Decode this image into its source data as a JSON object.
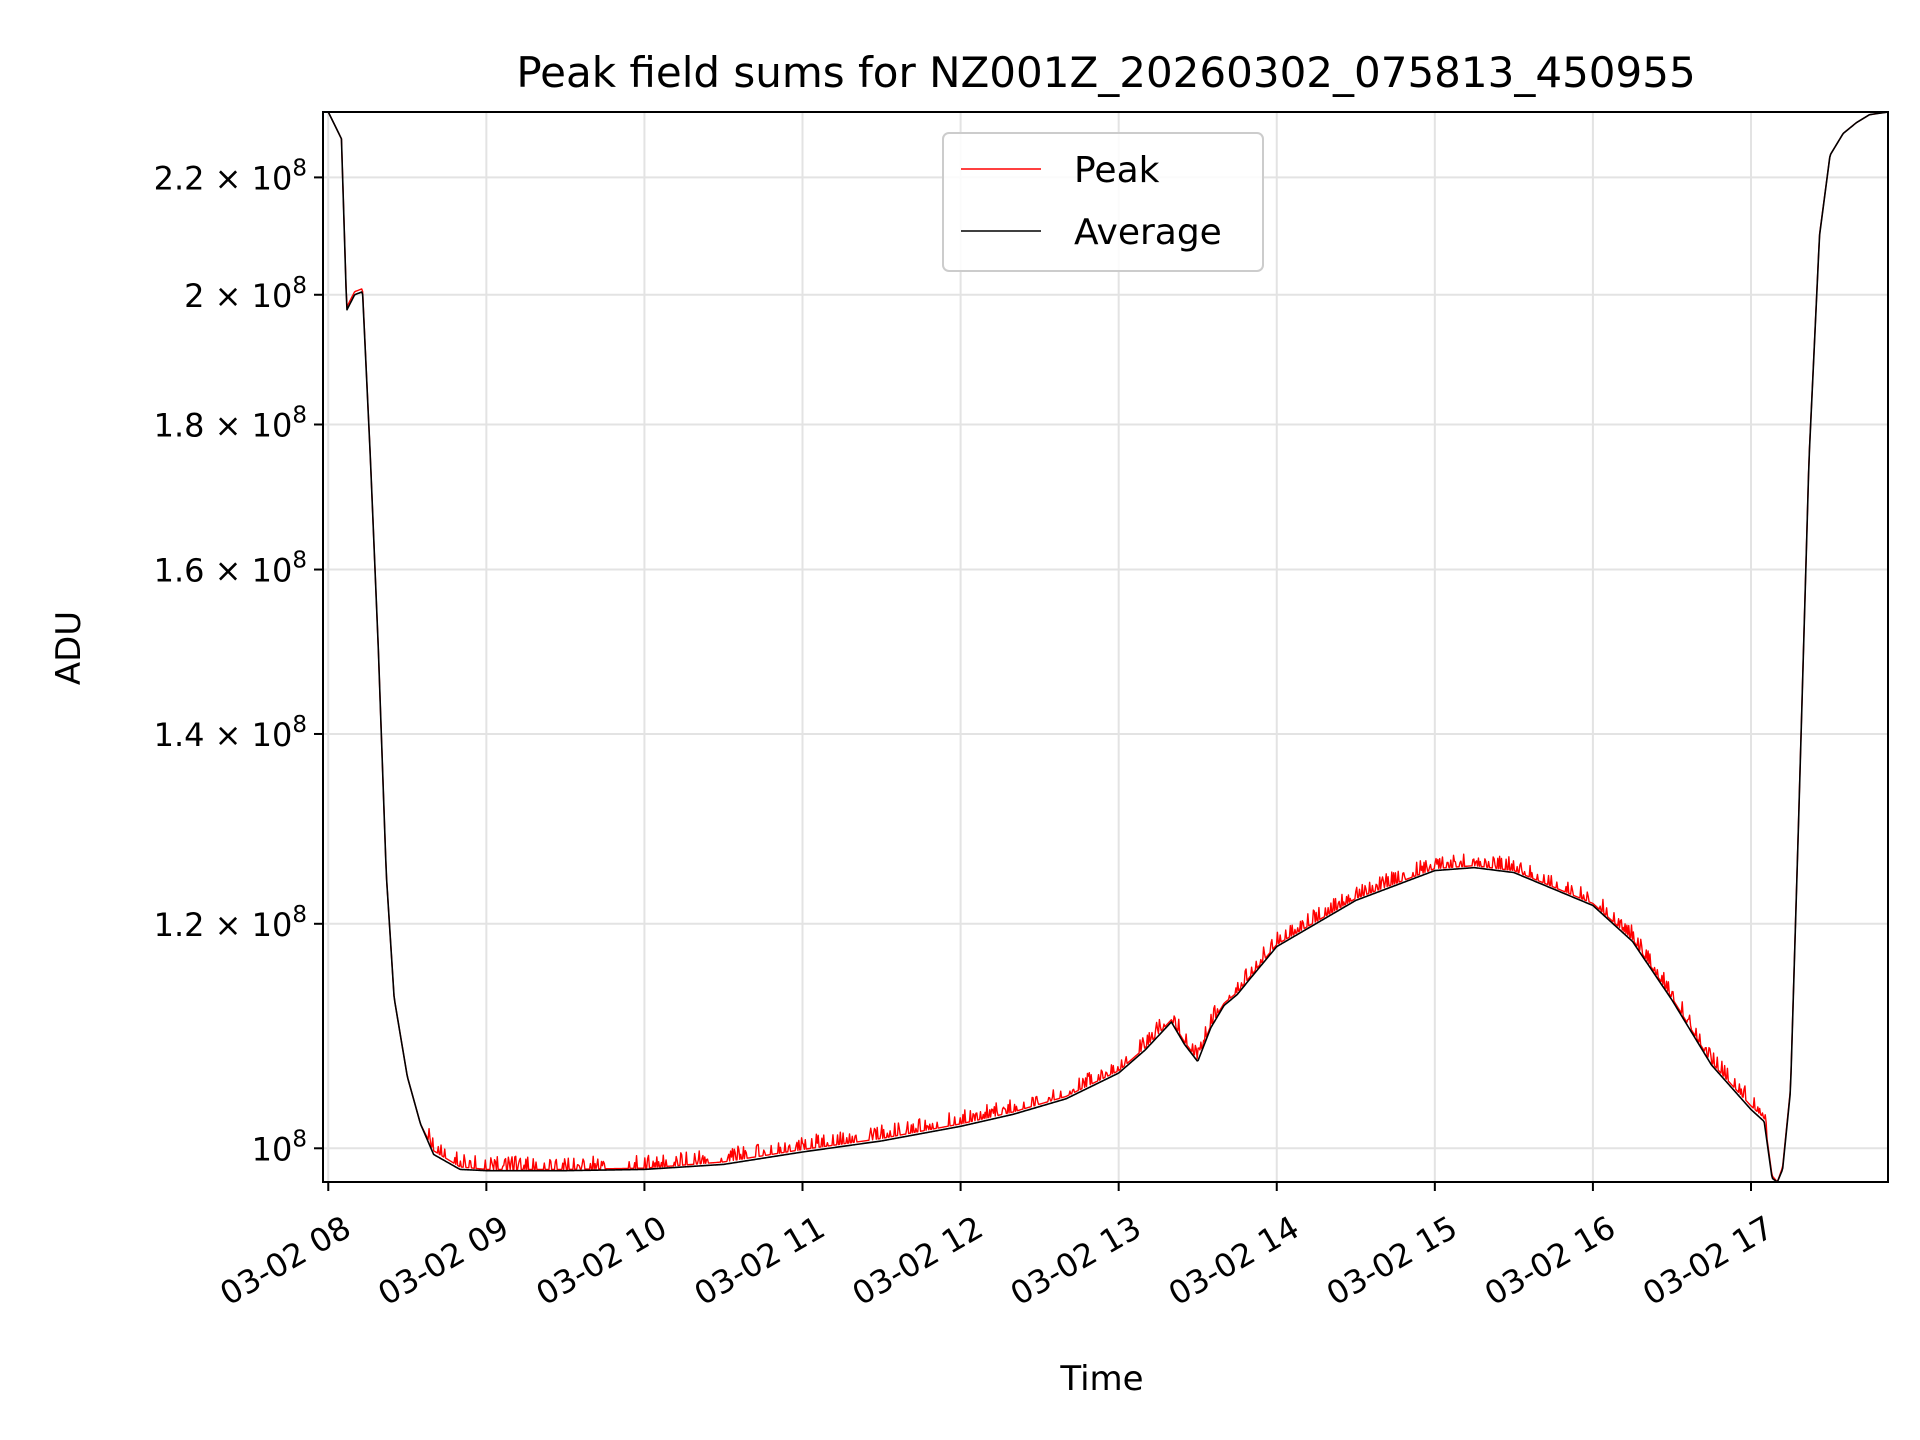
{
  "chart_data": {
    "type": "line",
    "title": "Peak field sums for NZ001Z_20260302_075813_450955",
    "xlabel": "Time",
    "ylabel": "ADU",
    "x_scale": "time",
    "y_scale": "log",
    "xlim": [
      "2026-03-02 07:58",
      "2026-03-02 17:52"
    ],
    "ylim": [
      97300000,
      232000000
    ],
    "x_ticks": [
      "03-02 08",
      "03-02 09",
      "03-02 10",
      "03-02 11",
      "03-02 12",
      "03-02 13",
      "03-02 14",
      "03-02 15",
      "03-02 16",
      "03-02 17"
    ],
    "y_ticks": [
      {
        "value": 100000000,
        "mantissa": "",
        "label": "10",
        "exponent": "8"
      },
      {
        "value": 120000000,
        "mantissa": "1.2",
        "label": "10",
        "exponent": "8"
      },
      {
        "value": 140000000,
        "mantissa": "1.4",
        "label": "10",
        "exponent": "8"
      },
      {
        "value": 160000000,
        "mantissa": "1.6",
        "label": "10",
        "exponent": "8"
      },
      {
        "value": 180000000,
        "mantissa": "1.8",
        "label": "10",
        "exponent": "8"
      },
      {
        "value": 200000000,
        "mantissa": "2",
        "label": "10",
        "exponent": "8"
      },
      {
        "value": 220000000,
        "mantissa": "2.2",
        "label": "10",
        "exponent": "8"
      }
    ],
    "times_symbol": "×",
    "grid": true,
    "legend_position": "upper center",
    "series": [
      {
        "name": "Peak",
        "color": "#ff0000",
        "noise": true,
        "x": [
          "07:58",
          "08:00",
          "08:01",
          "08:02",
          "08:03",
          "08:05",
          "08:07",
          "08:10",
          "08:13",
          "08:16",
          "08:19",
          "08:22",
          "08:25",
          "08:30",
          "08:35",
          "08:40",
          "08:50",
          "09:00",
          "09:30",
          "10:00",
          "10:30",
          "11:00",
          "11:30",
          "12:00",
          "12:20",
          "12:40",
          "13:00",
          "13:10",
          "13:20",
          "13:25",
          "13:30",
          "13:35",
          "13:40",
          "13:45",
          "13:50",
          "14:00",
          "14:30",
          "15:00",
          "15:15",
          "15:30",
          "16:00",
          "16:15",
          "16:30",
          "16:45",
          "17:00",
          "17:05",
          "17:08",
          "17:10",
          "17:12",
          "17:15",
          "17:18",
          "17:22",
          "17:26",
          "17:30",
          "17:35",
          "17:40",
          "17:45",
          "17:52"
        ],
        "y": [
          232000000,
          232000000,
          231000000,
          230000000,
          229000000,
          227000000,
          198000000,
          200500000,
          201000000,
          175000000,
          150000000,
          125000000,
          113000000,
          106000000,
          102000000,
          99800000,
          98500000,
          98300000,
          98300000,
          98400000,
          98900000,
          99900000,
          100800000,
          102000000,
          103000000,
          104300000,
          106500000,
          108500000,
          111000000,
          109000000,
          107500000,
          110500000,
          112500000,
          113500000,
          115000000,
          118000000,
          122500000,
          125500000,
          125800000,
          125300000,
          122000000,
          118500000,
          113000000,
          107200000,
          103500000,
          102500000,
          97800000,
          97300000,
          98500000,
          105000000,
          130000000,
          175000000,
          210000000,
          224000000,
          228000000,
          230000000,
          231500000,
          232000000
        ]
      },
      {
        "name": "Average",
        "color": "#000000",
        "noise": false,
        "x": [
          "07:58",
          "08:00",
          "08:01",
          "08:02",
          "08:03",
          "08:05",
          "08:07",
          "08:10",
          "08:13",
          "08:16",
          "08:19",
          "08:22",
          "08:25",
          "08:30",
          "08:35",
          "08:40",
          "08:50",
          "09:00",
          "09:30",
          "10:00",
          "10:30",
          "11:00",
          "11:30",
          "12:00",
          "12:20",
          "12:40",
          "13:00",
          "13:10",
          "13:20",
          "13:25",
          "13:30",
          "13:35",
          "13:40",
          "13:45",
          "13:50",
          "14:00",
          "14:30",
          "15:00",
          "15:15",
          "15:30",
          "16:00",
          "16:15",
          "16:30",
          "16:45",
          "17:00",
          "17:05",
          "17:08",
          "17:10",
          "17:12",
          "17:15",
          "17:18",
          "17:22",
          "17:26",
          "17:30",
          "17:35",
          "17:40",
          "17:45",
          "17:52"
        ],
        "y": [
          232000000,
          232000000,
          231000000,
          230000000,
          229000000,
          227000000,
          197500000,
          200000000,
          200500000,
          175000000,
          150000000,
          125000000,
          113000000,
          106000000,
          102000000,
          99500000,
          98300000,
          98200000,
          98200000,
          98300000,
          98700000,
          99700000,
          100600000,
          101800000,
          102800000,
          104100000,
          106300000,
          108300000,
          110800000,
          108800000,
          107300000,
          110300000,
          112300000,
          113300000,
          114800000,
          117800000,
          122300000,
          125300000,
          125600000,
          125100000,
          121800000,
          118300000,
          112800000,
          107000000,
          103200000,
          102200000,
          97600000,
          97300000,
          98300000,
          104800000,
          129800000,
          174800000,
          209800000,
          224000000,
          228000000,
          230000000,
          231500000,
          232000000
        ]
      }
    ]
  }
}
